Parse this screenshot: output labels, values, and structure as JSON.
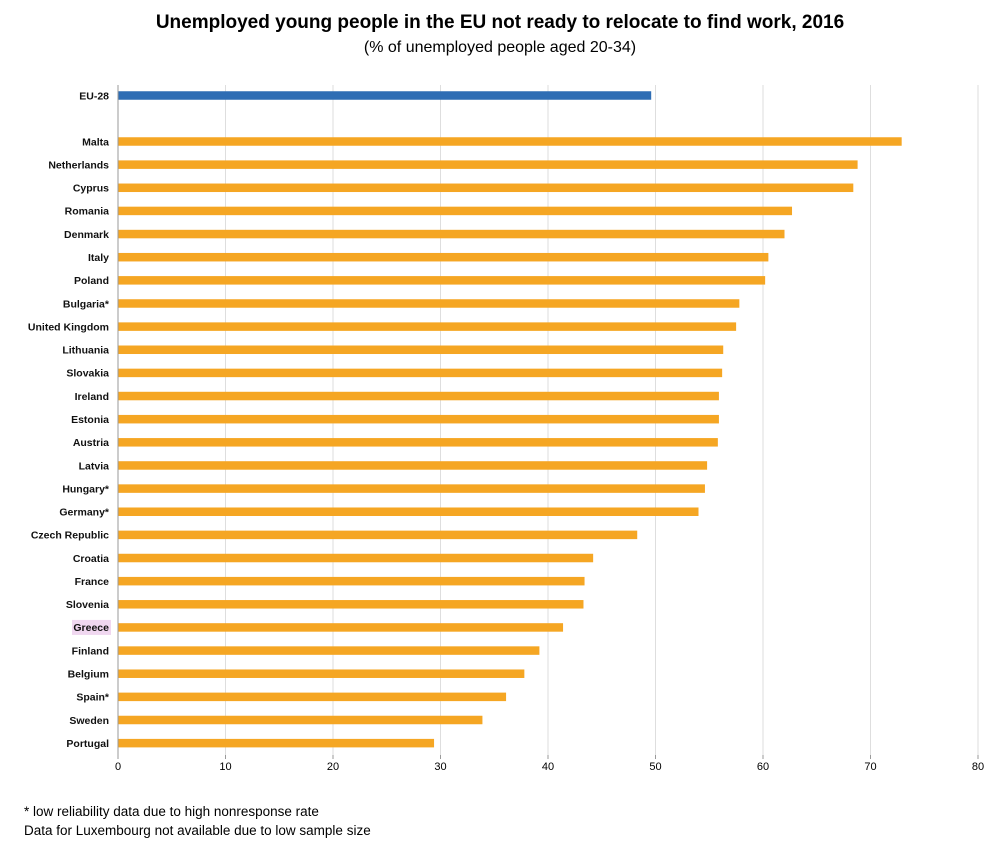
{
  "header": {
    "title": "Unemployed young people in the EU not ready to relocate to find work, 2016",
    "subtitle": "(% of unemployed people aged 20-34)"
  },
  "footnotes": [
    "* low reliability data due to high nonresponse rate",
    "Data for Luxembourg not available due to low sample size"
  ],
  "colors": {
    "eu_bar": "#2e6db4",
    "country_bar": "#f5a623",
    "highlight_label_bg": "#f0d7f0",
    "grid": "#dedede"
  },
  "chart_data": {
    "type": "bar",
    "orientation": "horizontal",
    "xlim": [
      0,
      80
    ],
    "xticks": [
      0,
      10,
      20,
      30,
      40,
      50,
      60,
      70,
      80
    ],
    "grid": true,
    "highlighted_category": "Greece",
    "categories": [
      "EU-28",
      "Malta",
      "Netherlands",
      "Cyprus",
      "Romania",
      "Denmark",
      "Italy",
      "Poland",
      "Bulgaria*",
      "United Kingdom",
      "Lithuania",
      "Slovakia",
      "Ireland",
      "Estonia",
      "Austria",
      "Latvia",
      "Hungary*",
      "Germany*",
      "Czech Republic",
      "Croatia",
      "France",
      "Slovenia",
      "Greece",
      "Finland",
      "Belgium",
      "Spain*",
      "Sweden",
      "Portugal"
    ],
    "values": [
      49.6,
      72.9,
      68.8,
      68.4,
      62.7,
      62.0,
      60.5,
      60.2,
      57.8,
      57.5,
      56.3,
      56.2,
      55.9,
      55.9,
      55.8,
      54.8,
      54.6,
      54.0,
      48.3,
      44.2,
      43.4,
      43.3,
      41.4,
      39.2,
      37.8,
      36.1,
      33.9,
      29.4
    ]
  }
}
